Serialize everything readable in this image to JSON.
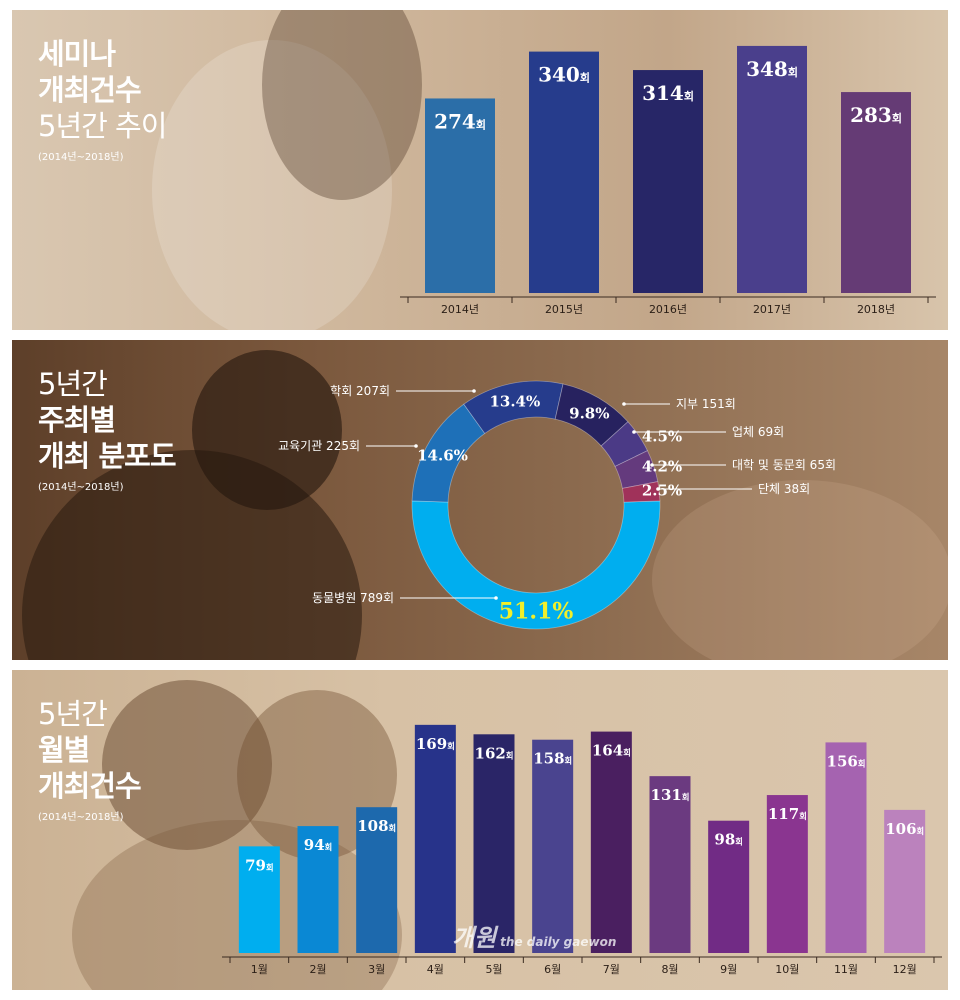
{
  "panel1": {
    "title_lines": [
      "세미나",
      "개최건수"
    ],
    "title_line3": "5년간 추이",
    "subtitle": "(2014년~2018년)"
  },
  "panel2": {
    "title_line1": "5년간",
    "title_lines": [
      "주최별",
      "개최 분포도"
    ],
    "subtitle": "(2014년~2018년)"
  },
  "panel3": {
    "title_lines": [
      "5년간",
      "월별",
      "개최건수"
    ],
    "subtitle": "(2014년~2018년)"
  },
  "watermark": {
    "main": "개원",
    "sub": "the daily gaewon"
  },
  "chart_data": [
    {
      "type": "bar",
      "categories": [
        "2014년",
        "2015년",
        "2016년",
        "2017년",
        "2018년"
      ],
      "values": [
        274,
        340,
        314,
        348,
        283
      ],
      "unit": "회",
      "colors": [
        "#2b6ea8",
        "#263c8c",
        "#272667",
        "#4a3f8c",
        "#653b75"
      ]
    },
    {
      "type": "pie",
      "labels": [
        "동물병원 789회",
        "교육기관 225회",
        "학회 207회",
        "지부 151회",
        "업체 69회",
        "대학 및 동문회 65회",
        "단체 38회"
      ],
      "values": [
        51.1,
        14.6,
        13.4,
        9.8,
        4.5,
        4.2,
        2.5
      ],
      "value_labels": [
        "51.1%",
        "14.6%",
        "13.4%",
        "9.8%",
        "4.5%",
        "4.2%",
        "2.5%"
      ],
      "colors": [
        "#00aeef",
        "#1e70b8",
        "#263c8c",
        "#27225f",
        "#4b3a86",
        "#643a7d",
        "#a0325a"
      ]
    },
    {
      "type": "bar",
      "categories": [
        "1월",
        "2월",
        "3월",
        "4월",
        "5월",
        "6월",
        "7월",
        "8월",
        "9월",
        "10월",
        "11월",
        "12월"
      ],
      "values": [
        79,
        94,
        108,
        169,
        162,
        158,
        164,
        131,
        98,
        117,
        156,
        106
      ],
      "unit": "회",
      "colors": [
        "#00aeef",
        "#0a88d4",
        "#1d69ad",
        "#27338a",
        "#2a2567",
        "#4a448f",
        "#4a1f60",
        "#6b3a80",
        "#712b85",
        "#8a3590",
        "#a563b0",
        "#bb82bd"
      ]
    }
  ]
}
